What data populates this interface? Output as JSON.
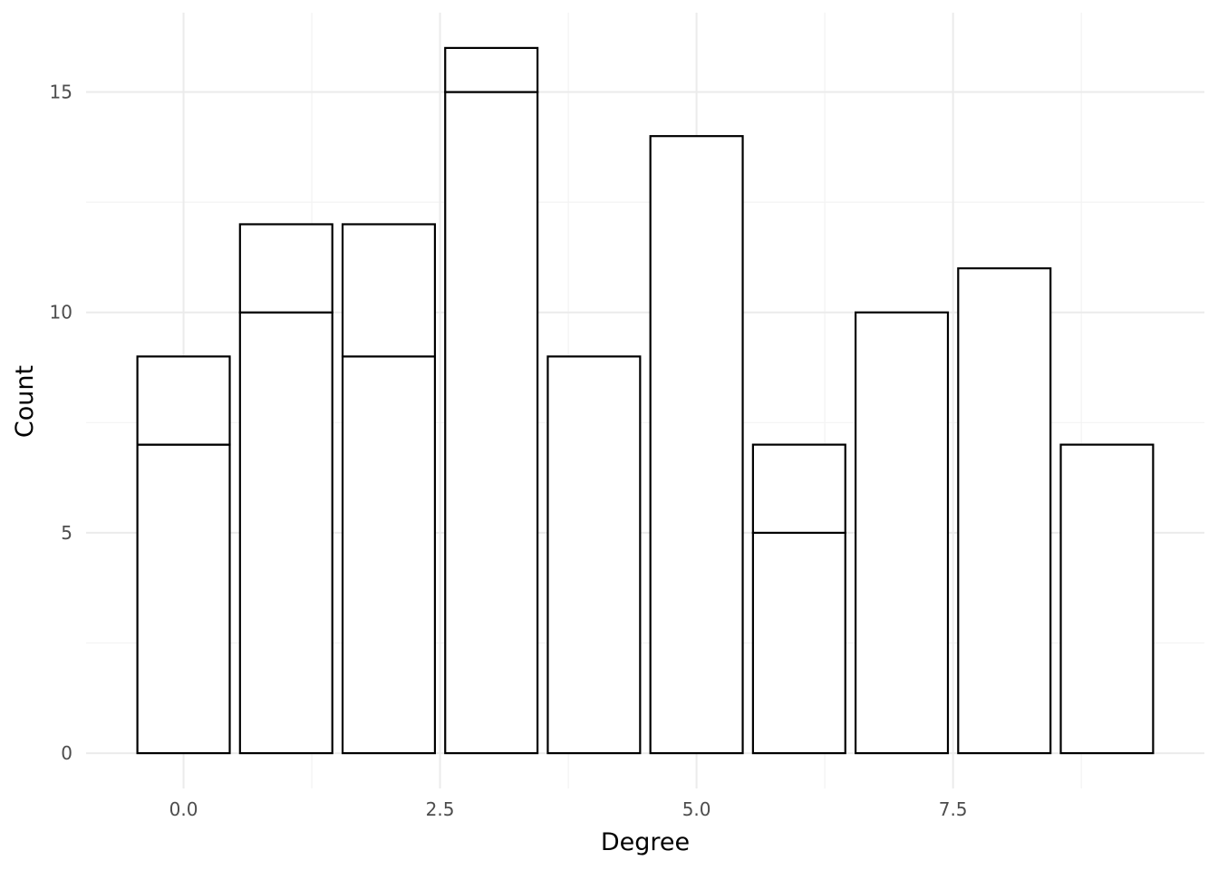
{
  "chart_data": {
    "type": "bar",
    "stacked": true,
    "xlabel": "Degree",
    "ylabel": "Count",
    "xlim": [
      -0.95,
      9.95
    ],
    "ylim": [
      -0.8,
      16.8
    ],
    "x_ticks": [
      0,
      2.5,
      5,
      7.5
    ],
    "x_tick_labels": [
      "0.0",
      "2.5",
      "5.0",
      "7.5"
    ],
    "x_minor_ticks": [
      1.25,
      3.75,
      6.25,
      8.75
    ],
    "y_ticks": [
      0,
      5,
      10,
      15
    ],
    "y_tick_labels": [
      "0",
      "5",
      "10",
      "15"
    ],
    "y_minor_ticks": [
      2.5,
      7.5,
      12.5
    ],
    "bar_width": 0.9,
    "grid": true,
    "bars": [
      {
        "x": 0,
        "segments": [
          7,
          2
        ]
      },
      {
        "x": 1,
        "segments": [
          10,
          2
        ]
      },
      {
        "x": 2,
        "segments": [
          9,
          3
        ]
      },
      {
        "x": 3,
        "segments": [
          15,
          1
        ]
      },
      {
        "x": 4,
        "segments": [
          9
        ]
      },
      {
        "x": 5,
        "segments": [
          14
        ]
      },
      {
        "x": 6,
        "segments": [
          5,
          2
        ]
      },
      {
        "x": 7,
        "segments": [
          10
        ]
      },
      {
        "x": 8,
        "segments": [
          11
        ]
      },
      {
        "x": 9,
        "segments": [
          7
        ]
      }
    ]
  }
}
